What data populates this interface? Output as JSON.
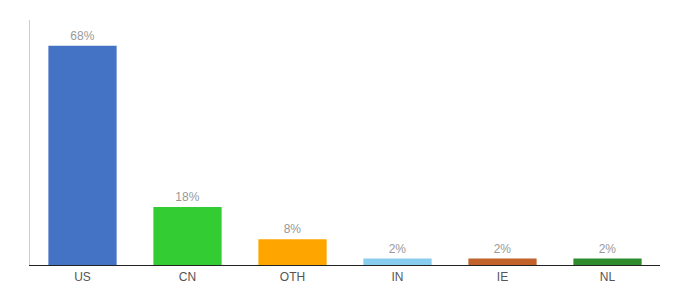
{
  "chart_data": {
    "type": "bar",
    "categories": [
      "US",
      "CN",
      "OTH",
      "IN",
      "IE",
      "NL"
    ],
    "values": [
      68,
      18,
      8,
      2,
      2,
      2
    ],
    "value_labels": [
      "68%",
      "18%",
      "8%",
      "2%",
      "2%",
      "2%"
    ],
    "colors": [
      "#4472C4",
      "#33CC33",
      "#FFA500",
      "#88CCEE",
      "#C0622A",
      "#2E8B2E"
    ],
    "data_labels": true,
    "ylim": [
      0,
      76
    ],
    "tick_labels": "x",
    "grid": false
  }
}
